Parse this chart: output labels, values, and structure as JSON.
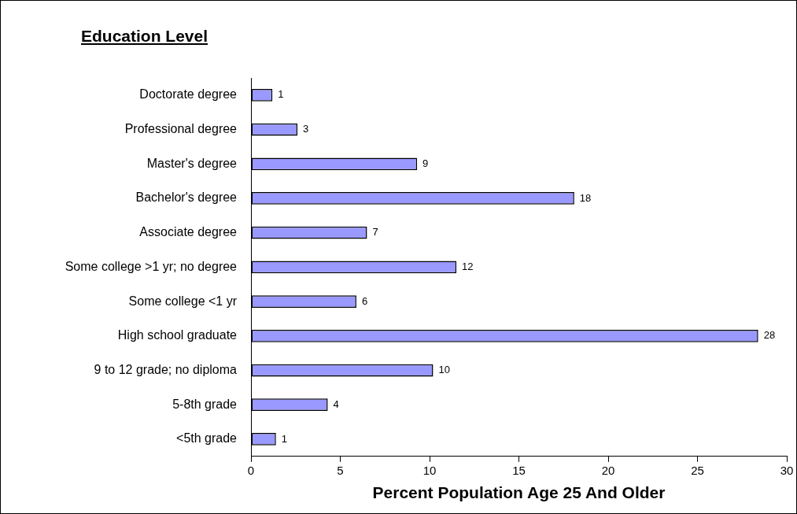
{
  "chart_data": {
    "type": "bar",
    "orientation": "horizontal",
    "ylabel": "Education Level",
    "xlabel": "Percent Population Age 25 And Older",
    "categories": [
      "Doctorate degree",
      "Professional degree",
      "Master's degree",
      "Bachelor's degree",
      "Associate degree",
      "Some college >1 yr; no degree",
      "Some college <1 yr",
      "High school graduate",
      "9 to 12 grade; no diploma",
      "5-8th grade",
      "<5th grade"
    ],
    "values": [
      1.2,
      2.6,
      9.3,
      18.1,
      6.5,
      11.5,
      5.9,
      28.4,
      10.2,
      4.3,
      1.4
    ],
    "value_labels": [
      "1",
      "3",
      "9",
      "18",
      "7",
      "12",
      "6",
      "28",
      "10",
      "4",
      "1"
    ],
    "color": "#9999ff",
    "xlim": [
      0,
      30
    ],
    "xticks": [
      0,
      5,
      10,
      15,
      20,
      25,
      30
    ],
    "grid": false,
    "legend": false
  }
}
